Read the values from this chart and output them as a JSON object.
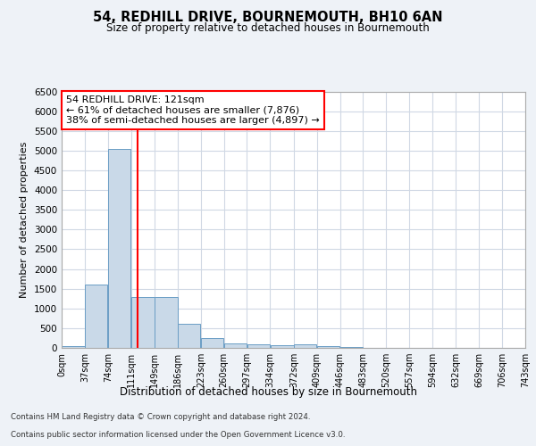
{
  "title": "54, REDHILL DRIVE, BOURNEMOUTH, BH10 6AN",
  "subtitle": "Size of property relative to detached houses in Bournemouth",
  "xlabel": "Distribution of detached houses by size in Bournemouth",
  "ylabel": "Number of detached properties",
  "footer1": "Contains HM Land Registry data © Crown copyright and database right 2024.",
  "footer2": "Contains public sector information licensed under the Open Government Licence v3.0.",
  "annotation_line1": "54 REDHILL DRIVE: 121sqm",
  "annotation_line2": "← 61% of detached houses are smaller (7,876)",
  "annotation_line3": "38% of semi-detached houses are larger (4,897) →",
  "bar_color": "#c9d9e8",
  "bar_edge_color": "#6b9ec5",
  "red_line_x": 121,
  "ylim": [
    0,
    6500
  ],
  "yticks": [
    0,
    500,
    1000,
    1500,
    2000,
    2500,
    3000,
    3500,
    4000,
    4500,
    5000,
    5500,
    6000,
    6500
  ],
  "bin_edges": [
    0,
    37,
    74,
    111,
    149,
    186,
    223,
    260,
    297,
    334,
    372,
    409,
    446,
    483,
    520,
    557,
    594,
    632,
    669,
    706,
    743
  ],
  "bin_labels": [
    "0sqm",
    "37sqm",
    "74sqm",
    "111sqm",
    "149sqm",
    "186sqm",
    "223sqm",
    "260sqm",
    "297sqm",
    "334sqm",
    "372sqm",
    "409sqm",
    "446sqm",
    "483sqm",
    "520sqm",
    "557sqm",
    "594sqm",
    "632sqm",
    "669sqm",
    "706sqm",
    "743sqm"
  ],
  "bar_heights": [
    55,
    1600,
    5050,
    1300,
    1290,
    600,
    240,
    110,
    90,
    70,
    100,
    55,
    20,
    5,
    0,
    0,
    0,
    0,
    0,
    0
  ],
  "background_color": "#eef2f7",
  "plot_bg_color": "#ffffff",
  "grid_color": "#d0d8e4"
}
